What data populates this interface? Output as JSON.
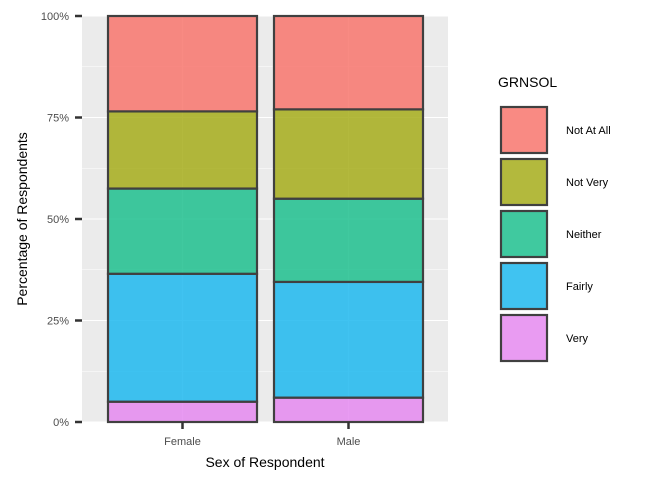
{
  "chart_data": {
    "type": "bar",
    "stacked": true,
    "percent_stacked": true,
    "categories": [
      "Female",
      "Male"
    ],
    "series": [
      {
        "name": "Very",
        "values": [
          5,
          6
        ],
        "color": "#E58AF0"
      },
      {
        "name": "Fairly",
        "values": [
          31.5,
          28.5
        ],
        "color": "#1FB8EE"
      },
      {
        "name": "Neither",
        "values": [
          21,
          20.5
        ],
        "color": "#1FC08E"
      },
      {
        "name": "Not Very",
        "values": [
          19,
          22
        ],
        "color": "#A6AD1B"
      },
      {
        "name": "Not At All",
        "values": [
          23.5,
          23
        ],
        "color": "#F8766D"
      }
    ],
    "xlabel": "Sex of Respondent",
    "ylabel": "Percentage of Respondents",
    "y_ticks": [
      "0%",
      "25%",
      "50%",
      "75%",
      "100%"
    ],
    "y_tick_values": [
      0,
      25,
      50,
      75,
      100
    ],
    "ylim": [
      0,
      100
    ],
    "legend_title": "GRNSOL",
    "legend_order": [
      "Not At All",
      "Not Very",
      "Neither",
      "Fairly",
      "Very"
    ],
    "legend_position": "right",
    "grid": true,
    "panel_color": "#EBEBEB",
    "bar_outline_color": "#404040"
  }
}
